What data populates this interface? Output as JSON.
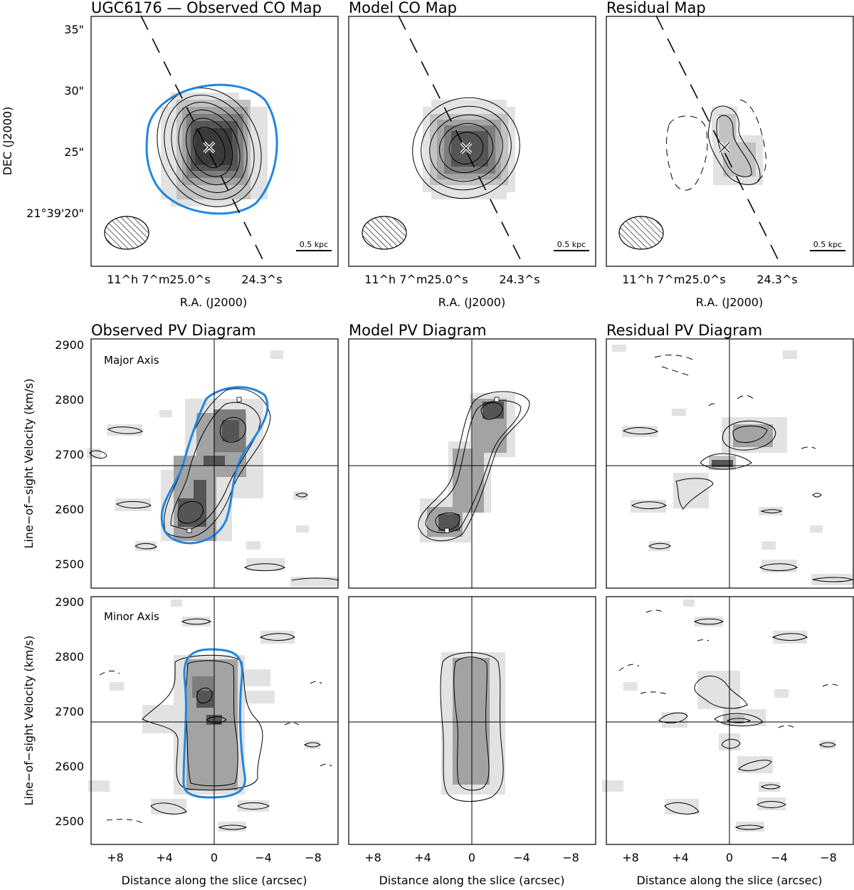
{
  "chart_data": [
    {
      "panel": "observed-co-map",
      "type": "contour",
      "title": "UGC6176 — Observed CO Map",
      "xlabel": "R.A. (J2000)",
      "ylabel": "DEC (J2000)",
      "x_ticks": [
        {
          "label": "11^h 7^m25.0^s"
        },
        {
          "label": "24.3^s"
        }
      ],
      "y_ticks": [
        {
          "label": "35\"",
          "value": 35
        },
        {
          "label": "30\"",
          "value": 30
        },
        {
          "label": "25\"",
          "value": 25
        },
        {
          "label": "21°39'20\"",
          "value": 20
        }
      ],
      "ylim": [
        14.5,
        35.5
      ],
      "center_marker": {
        "x_arcsec": 0,
        "y_arcsec": 25.3
      },
      "major_axis_dashed_line": true,
      "blue_contour": true,
      "beam": {
        "hatched_ellipse": true
      },
      "scale_bar_label": "0.5 kpc",
      "contour_levels": 6
    },
    {
      "panel": "model-co-map",
      "type": "contour",
      "title": "Model CO Map",
      "xlabel": "R.A. (J2000)",
      "x_ticks": [
        {
          "label": "11^h 7^m25.0^s"
        },
        {
          "label": "24.3^s"
        }
      ],
      "center_marker": {
        "x_arcsec": 0,
        "y_arcsec": 25.3
      },
      "scale_bar_label": "0.5 kpc",
      "contour_levels": 5
    },
    {
      "panel": "residual-map",
      "type": "contour",
      "title": "Residual Map",
      "xlabel": "R.A. (J2000)",
      "x_ticks": [
        {
          "label": "11^h 7^m25.0^s"
        },
        {
          "label": "24.3^s"
        }
      ],
      "center_marker": {
        "x_arcsec": 0,
        "y_arcsec": 25.3
      },
      "scale_bar_label": "0.5 kpc",
      "negative_contours_dashed": true
    },
    {
      "panel": "observed-pv-major",
      "type": "contour",
      "title": "Observed PV Diagram",
      "annotation": "Major Axis",
      "ylabel": "Line−of−sight Velocity (km/s)",
      "xlim": [
        10,
        -10
      ],
      "ylim": [
        2455,
        2910
      ],
      "y_ticks": [
        2500,
        2600,
        2700,
        2800,
        2900
      ],
      "systemic_velocity": 2680,
      "center_offset": 0,
      "blue_contour": true,
      "peak_markers": [
        {
          "x": 2,
          "y": 2562
        },
        {
          "x": -2.5,
          "y": 2800
        }
      ]
    },
    {
      "panel": "model-pv-major",
      "type": "contour",
      "title": "Model PV Diagram",
      "xlim": [
        10,
        -10
      ],
      "ylim": [
        2455,
        2910
      ],
      "systemic_velocity": 2680,
      "peak_markers": [
        {
          "x": 2,
          "y": 2562
        },
        {
          "x": -2.5,
          "y": 2800
        }
      ]
    },
    {
      "panel": "residual-pv-major",
      "type": "contour",
      "title": "Residual PV Diagram",
      "xlim": [
        10,
        -10
      ],
      "ylim": [
        2455,
        2910
      ],
      "systemic_velocity": 2680
    },
    {
      "panel": "observed-pv-minor",
      "type": "contour",
      "annotation": "Minor Axis",
      "ylabel": "Line−of−sight Velocity (km/s)",
      "xlabel": "Distance along the slice (arcsec)",
      "xlim": [
        10,
        -10
      ],
      "x_ticks": [
        {
          "label": "+8",
          "value": 8
        },
        {
          "label": "+4",
          "value": 4
        },
        {
          "label": "0",
          "value": 0
        },
        {
          "label": "−4",
          "value": -4
        },
        {
          "label": "−8",
          "value": -8
        }
      ],
      "ylim": [
        2455,
        2910
      ],
      "y_ticks": [
        2500,
        2600,
        2700,
        2800,
        2900
      ],
      "systemic_velocity": 2680,
      "blue_contour": true
    },
    {
      "panel": "model-pv-minor",
      "type": "contour",
      "xlabel": "Distance along the slice (arcsec)",
      "xlim": [
        10,
        -10
      ],
      "x_ticks": [
        {
          "label": "+8",
          "value": 8
        },
        {
          "label": "+4",
          "value": 4
        },
        {
          "label": "0",
          "value": 0
        },
        {
          "label": "−4",
          "value": -4
        },
        {
          "label": "−8",
          "value": -8
        }
      ],
      "ylim": [
        2455,
        2910
      ],
      "systemic_velocity": 2680
    },
    {
      "panel": "residual-pv-minor",
      "type": "contour",
      "xlabel": "Distance along the slice (arcsec)",
      "xlim": [
        10,
        -10
      ],
      "x_ticks": [
        {
          "label": "+8",
          "value": 8
        },
        {
          "label": "+4",
          "value": 4
        },
        {
          "label": "0",
          "value": 0
        },
        {
          "label": "−4",
          "value": -4
        },
        {
          "label": "−8",
          "value": -8
        }
      ],
      "ylim": [
        2455,
        2910
      ],
      "systemic_velocity": 2680
    }
  ],
  "colors": {
    "frame": "#000000",
    "blue_contour": "#1f86e0",
    "gray_levels": [
      "#e2e2e2",
      "#c2c2c2",
      "#a3a3a3",
      "#7d7d7d",
      "#555555",
      "#3a3a3a"
    ]
  }
}
